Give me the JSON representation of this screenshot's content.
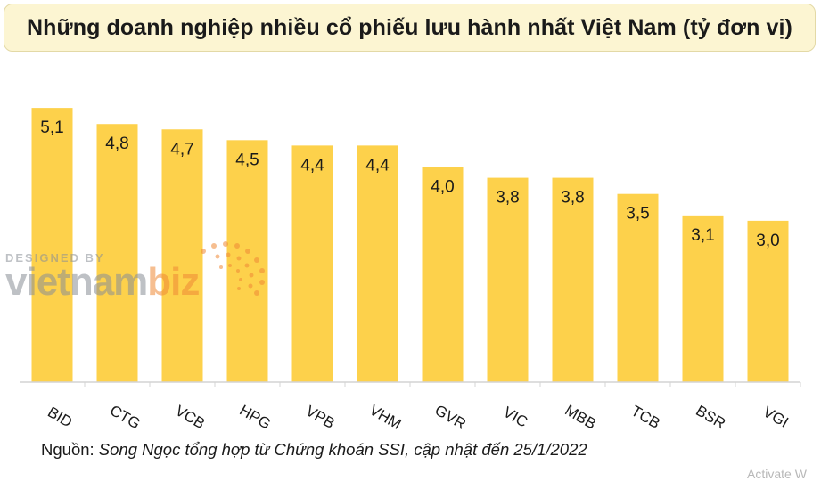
{
  "chart_data": {
    "type": "bar",
    "title": "Những doanh nghiệp nhiều cổ phiếu lưu hành nhất Việt Nam (tỷ đơn vị)",
    "categories": [
      "BID",
      "CTG",
      "VCB",
      "HPG",
      "VPB",
      "VHM",
      "GVR",
      "VIC",
      "MBB",
      "TCB",
      "BSR",
      "VGI"
    ],
    "values": [
      5.1,
      4.8,
      4.7,
      4.5,
      4.4,
      4.4,
      4.0,
      3.8,
      3.8,
      3.5,
      3.1,
      3.0
    ],
    "value_labels": [
      "5,1",
      "4,8",
      "4,7",
      "4,5",
      "4,4",
      "4,4",
      "4,0",
      "3,8",
      "3,8",
      "3,5",
      "3,1",
      "3,0"
    ],
    "ylim": [
      0,
      5.4
    ],
    "grid": false,
    "legend": "none",
    "bar_color": "#fdd14b",
    "xlabel": "",
    "ylabel": ""
  },
  "source": {
    "label": "Nguồn:",
    "text": "Song Ngọc tổng hợp từ Chứng khoán SSI, cập nhật đến 25/1/2022"
  },
  "watermark": {
    "top": "DESIGNED BY",
    "brand_main": "vietnam",
    "brand_accent": "biz"
  },
  "overlay": {
    "activate": "Activate W"
  }
}
